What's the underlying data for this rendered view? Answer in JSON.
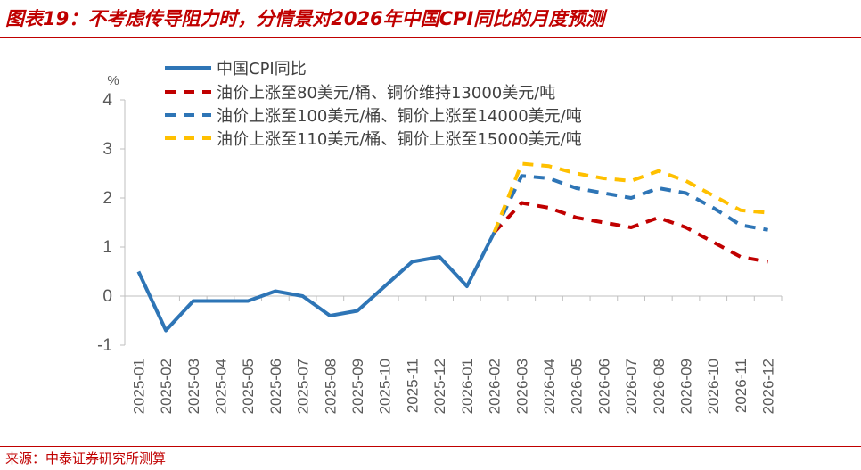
{
  "title": "图表19：不考虑传导阻力时，分情景对2026年中国CPI同比的月度预测",
  "source": "来源：中泰证券研究所测算",
  "colors": {
    "title": "#C00000",
    "actual": "#2E75B6",
    "scenario_1": "#C00000",
    "scenario_2": "#2E75B6",
    "scenario_3": "#FFC000",
    "axis": "#BFBFBF",
    "text": "#595959"
  },
  "chart_data": {
    "type": "line",
    "title": "不考虑传导阻力时，分情景对2026年中国CPI同比的月度预测",
    "ylabel": "%",
    "xlabel": "",
    "ylim": [
      -1,
      4
    ],
    "yticks": [
      -1,
      0,
      1,
      2,
      3,
      4
    ],
    "grid": false,
    "legend_position": "top-left",
    "categories": [
      "2025-01",
      "2025-02",
      "2025-03",
      "2025-04",
      "2025-05",
      "2025-06",
      "2025-07",
      "2025-08",
      "2025-09",
      "2025-10",
      "2025-11",
      "2025-12",
      "2026-01",
      "2026-02",
      "2026-03",
      "2026-04",
      "2026-05",
      "2026-06",
      "2026-07",
      "2026-08",
      "2026-09",
      "2026-10",
      "2026-11",
      "2026-12"
    ],
    "series": [
      {
        "name": "中国CPI同比",
        "style": "solid",
        "color": "#2E75B6",
        "values": [
          0.5,
          -0.7,
          -0.1,
          -0.1,
          -0.1,
          0.1,
          0.0,
          -0.4,
          -0.3,
          0.2,
          0.7,
          0.8,
          0.2,
          1.3,
          null,
          null,
          null,
          null,
          null,
          null,
          null,
          null,
          null,
          null
        ]
      },
      {
        "name": "油价上涨至80美元/桶、铜价维持13000美元/吨",
        "style": "dashed",
        "color": "#C00000",
        "values": [
          null,
          null,
          null,
          null,
          null,
          null,
          null,
          null,
          null,
          null,
          null,
          null,
          null,
          1.3,
          1.9,
          1.8,
          1.6,
          1.5,
          1.4,
          1.6,
          1.4,
          1.1,
          0.8,
          0.7
        ]
      },
      {
        "name": "油价上涨至100美元/桶、铜价上涨至14000美元/吨",
        "style": "dashed",
        "color": "#2E75B6",
        "values": [
          null,
          null,
          null,
          null,
          null,
          null,
          null,
          null,
          null,
          null,
          null,
          null,
          null,
          1.3,
          2.45,
          2.4,
          2.2,
          2.1,
          2.0,
          2.2,
          2.1,
          1.8,
          1.45,
          1.35
        ]
      },
      {
        "name": "油价上涨至110美元/桶、铜价上涨至15000美元/吨",
        "style": "dashed",
        "color": "#FFC000",
        "values": [
          null,
          null,
          null,
          null,
          null,
          null,
          null,
          null,
          null,
          null,
          null,
          null,
          null,
          1.3,
          2.7,
          2.65,
          2.5,
          2.4,
          2.35,
          2.55,
          2.35,
          2.05,
          1.75,
          1.7
        ]
      }
    ]
  }
}
